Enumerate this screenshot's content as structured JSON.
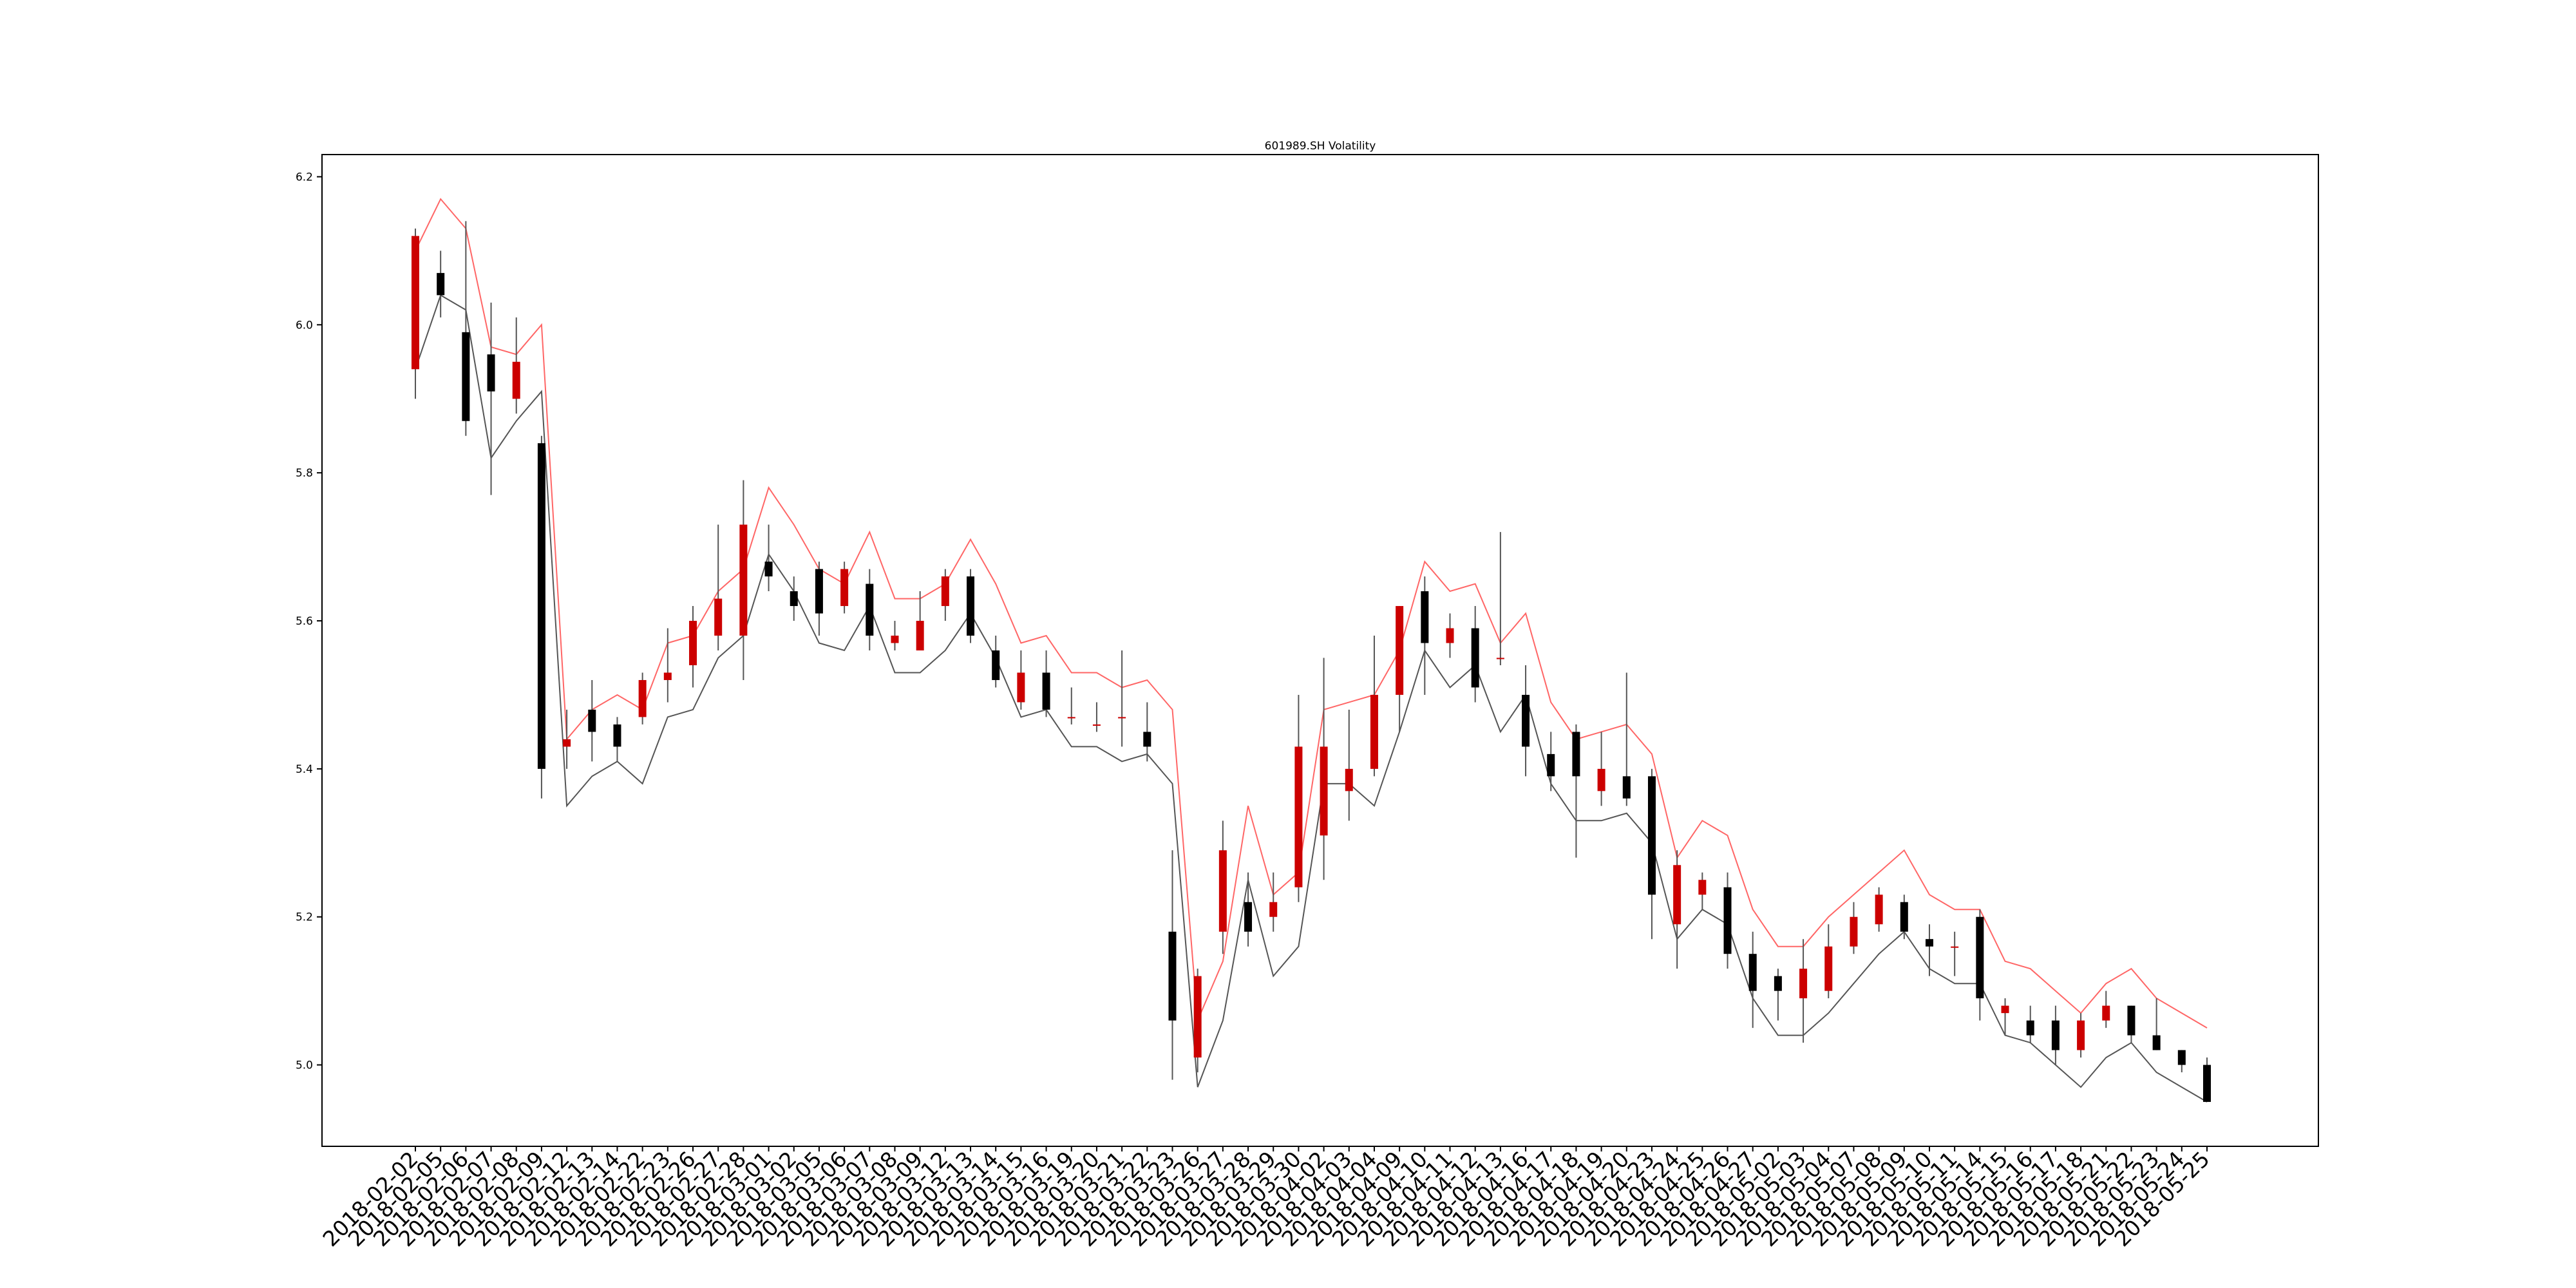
{
  "chart_data": {
    "type": "candlestick",
    "title": "601989.SH Volatility",
    "xlabel": "",
    "ylabel": "",
    "ylim": [
      4.89,
      6.23
    ],
    "yticks": [
      "5.0",
      "5.2",
      "5.4",
      "5.6",
      "5.8",
      "6.0",
      "6.2"
    ],
    "grid": false,
    "colors": {
      "up": "#cc0000",
      "down": "#000000",
      "upper_band": "#ff6666",
      "lower_band": "#555555"
    },
    "categories": [
      "2018-02-02",
      "2018-02-05",
      "2018-02-06",
      "2018-02-07",
      "2018-02-08",
      "2018-02-09",
      "2018-02-12",
      "2018-02-13",
      "2018-02-14",
      "2018-02-22",
      "2018-02-23",
      "2018-02-26",
      "2018-02-27",
      "2018-02-28",
      "2018-03-01",
      "2018-03-02",
      "2018-03-05",
      "2018-03-06",
      "2018-03-07",
      "2018-03-08",
      "2018-03-09",
      "2018-03-12",
      "2018-03-13",
      "2018-03-14",
      "2018-03-15",
      "2018-03-16",
      "2018-03-19",
      "2018-03-20",
      "2018-03-21",
      "2018-03-22",
      "2018-03-23",
      "2018-03-26",
      "2018-03-27",
      "2018-03-28",
      "2018-03-29",
      "2018-03-30",
      "2018-04-02",
      "2018-04-03",
      "2018-04-04",
      "2018-04-09",
      "2018-04-10",
      "2018-04-11",
      "2018-04-12",
      "2018-04-13",
      "2018-04-16",
      "2018-04-17",
      "2018-04-18",
      "2018-04-19",
      "2018-04-20",
      "2018-04-23",
      "2018-04-24",
      "2018-04-25",
      "2018-04-26",
      "2018-04-27",
      "2018-05-02",
      "2018-05-03",
      "2018-05-04",
      "2018-05-07",
      "2018-05-08",
      "2018-05-09",
      "2018-05-10",
      "2018-05-11",
      "2018-05-14",
      "2018-05-15",
      "2018-05-16",
      "2018-05-17",
      "2018-05-18",
      "2018-05-21",
      "2018-05-22",
      "2018-05-23",
      "2018-05-24",
      "2018-05-25"
    ],
    "open": [
      5.94,
      6.07,
      5.99,
      5.96,
      5.9,
      5.84,
      5.43,
      5.48,
      5.46,
      5.47,
      5.52,
      5.54,
      5.58,
      5.58,
      5.68,
      5.64,
      5.67,
      5.62,
      5.65,
      5.57,
      5.56,
      5.62,
      5.66,
      5.56,
      5.49,
      5.53,
      5.47,
      5.46,
      5.47,
      5.45,
      5.18,
      5.01,
      5.18,
      5.22,
      5.2,
      5.24,
      5.31,
      5.37,
      5.4,
      5.5,
      5.64,
      5.57,
      5.59,
      5.55,
      5.5,
      5.42,
      5.45,
      5.37,
      5.39,
      5.39,
      5.19,
      5.23,
      5.24,
      5.15,
      5.12,
      5.09,
      5.1,
      5.16,
      5.19,
      5.22,
      5.17,
      5.16,
      5.2,
      5.07,
      5.06,
      5.06,
      5.02,
      5.06,
      5.08,
      5.04,
      5.02,
      5.0
    ],
    "close": [
      6.12,
      6.04,
      5.87,
      5.91,
      5.95,
      5.4,
      5.44,
      5.45,
      5.43,
      5.52,
      5.53,
      5.6,
      5.63,
      5.73,
      5.66,
      5.62,
      5.61,
      5.67,
      5.58,
      5.58,
      5.6,
      5.66,
      5.58,
      5.52,
      5.53,
      5.48,
      5.47,
      5.46,
      5.47,
      5.43,
      5.06,
      5.12,
      5.29,
      5.18,
      5.22,
      5.43,
      5.43,
      5.4,
      5.5,
      5.62,
      5.57,
      5.59,
      5.51,
      5.55,
      5.43,
      5.39,
      5.39,
      5.4,
      5.36,
      5.23,
      5.27,
      5.25,
      5.15,
      5.1,
      5.1,
      5.13,
      5.16,
      5.2,
      5.23,
      5.18,
      5.16,
      5.16,
      5.09,
      5.08,
      5.04,
      5.02,
      5.06,
      5.08,
      5.04,
      5.02,
      5.0,
      4.95
    ],
    "high": [
      6.13,
      6.1,
      6.14,
      6.03,
      6.01,
      5.85,
      5.48,
      5.52,
      5.47,
      5.53,
      5.59,
      5.62,
      5.73,
      5.79,
      5.73,
      5.66,
      5.68,
      5.68,
      5.67,
      5.6,
      5.64,
      5.67,
      5.67,
      5.58,
      5.56,
      5.56,
      5.51,
      5.49,
      5.56,
      5.49,
      5.29,
      5.13,
      5.33,
      5.26,
      5.26,
      5.5,
      5.55,
      5.48,
      5.58,
      5.62,
      5.66,
      5.61,
      5.62,
      5.72,
      5.54,
      5.45,
      5.46,
      5.45,
      5.53,
      5.4,
      5.29,
      5.26,
      5.26,
      5.18,
      5.13,
      5.17,
      5.19,
      5.22,
      5.24,
      5.23,
      5.19,
      5.18,
      5.21,
      5.09,
      5.08,
      5.08,
      5.07,
      5.1,
      5.08,
      5.09,
      5.02,
      5.01
    ],
    "low": [
      5.9,
      6.01,
      5.85,
      5.77,
      5.88,
      5.36,
      5.4,
      5.41,
      5.41,
      5.46,
      5.49,
      5.51,
      5.56,
      5.52,
      5.64,
      5.6,
      5.58,
      5.61,
      5.56,
      5.56,
      5.56,
      5.6,
      5.57,
      5.51,
      5.48,
      5.47,
      5.46,
      5.45,
      5.43,
      5.41,
      4.98,
      4.99,
      5.15,
      5.16,
      5.18,
      5.22,
      5.25,
      5.33,
      5.39,
      5.45,
      5.5,
      5.55,
      5.49,
      5.54,
      5.39,
      5.37,
      5.28,
      5.35,
      5.35,
      5.17,
      5.13,
      5.21,
      5.13,
      5.05,
      5.06,
      5.03,
      5.09,
      5.15,
      5.18,
      5.17,
      5.12,
      5.12,
      5.06,
      5.04,
      5.03,
      5.0,
      5.01,
      5.05,
      5.03,
      5.02,
      4.99,
      4.95
    ],
    "series": [
      {
        "values": [
          6.1,
          6.17,
          6.13,
          5.97,
          5.96,
          6.0,
          5.44,
          5.48,
          5.5,
          5.48,
          5.57,
          5.58,
          5.64,
          5.67,
          5.78,
          5.73,
          5.67,
          5.65,
          5.72,
          5.63,
          5.63,
          5.65,
          5.71,
          5.65,
          5.57,
          5.58,
          5.53,
          5.53,
          5.51,
          5.52,
          5.48,
          5.06,
          5.14,
          5.35,
          5.23,
          5.26,
          5.48,
          5.49,
          5.5,
          5.56,
          5.68,
          5.64,
          5.65,
          5.57,
          5.61,
          5.49,
          5.44,
          5.45,
          5.46,
          5.42,
          5.28,
          5.33,
          5.31,
          5.21,
          5.16,
          5.16,
          5.2,
          5.23,
          5.26,
          5.29,
          5.23,
          5.21,
          5.21,
          5.14,
          5.13,
          5.1,
          5.07,
          5.11,
          5.13,
          5.09,
          5.07,
          5.05
        ]
      },
      {
        "values": [
          5.94,
          6.04,
          6.02,
          5.82,
          5.87,
          5.91,
          5.35,
          5.39,
          5.41,
          5.38,
          5.47,
          5.48,
          5.55,
          5.58,
          5.69,
          5.64,
          5.57,
          5.56,
          5.62,
          5.53,
          5.53,
          5.56,
          5.61,
          5.55,
          5.47,
          5.48,
          5.43,
          5.43,
          5.41,
          5.42,
          5.38,
          4.97,
          5.06,
          5.25,
          5.12,
          5.16,
          5.38,
          5.38,
          5.35,
          5.45,
          5.56,
          5.51,
          5.54,
          5.45,
          5.5,
          5.38,
          5.33,
          5.33,
          5.34,
          5.3,
          5.17,
          5.21,
          5.19,
          5.09,
          5.04,
          5.04,
          5.07,
          5.11,
          5.15,
          5.18,
          5.13,
          5.11,
          5.11,
          5.04,
          5.03,
          5.0,
          4.97,
          5.01,
          5.03,
          4.99,
          4.97,
          4.95
        ]
      }
    ]
  }
}
